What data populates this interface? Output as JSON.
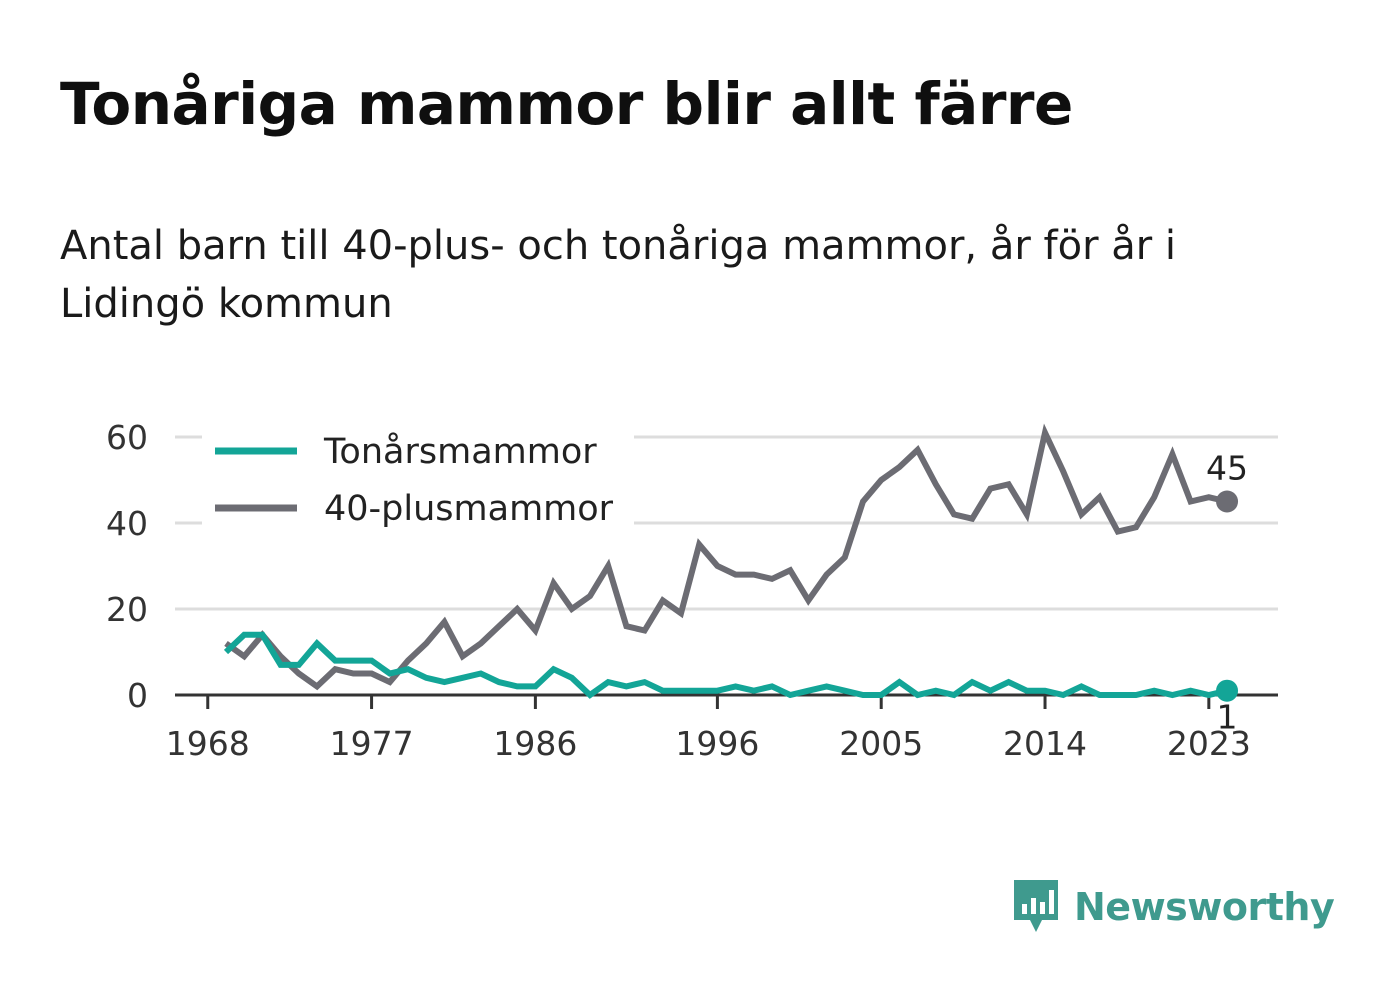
{
  "title": "Tonåriga mammor blir allt färre",
  "subtitle": "Antal barn till 40-plus- och tonåriga mammor, år för år i Lidingö kommun",
  "brand": {
    "name": "Newsworthy",
    "icon": "newsworthy-logo-icon"
  },
  "colors": {
    "teen": "#13a597",
    "forty": "#6c6c73",
    "grid": "#dddddd",
    "axis": "#333333"
  },
  "chart_data": {
    "type": "line",
    "x_ticks": [
      "1968",
      "1977",
      "1986",
      "1996",
      "2005",
      "2014",
      "2023"
    ],
    "y_ticks": [
      "0",
      "20",
      "40",
      "60"
    ],
    "ylim": [
      0,
      60
    ],
    "grid": true,
    "legend": "top-left",
    "x": [
      1969,
      1970,
      1971,
      1972,
      1973,
      1974,
      1975,
      1976,
      1977,
      1978,
      1979,
      1980,
      1981,
      1982,
      1983,
      1984,
      1985,
      1986,
      1987,
      1988,
      1989,
      1990,
      1991,
      1992,
      1993,
      1994,
      1995,
      1996,
      1997,
      1998,
      1999,
      2000,
      2001,
      2002,
      2003,
      2004,
      2005,
      2006,
      2007,
      2008,
      2009,
      2010,
      2011,
      2012,
      2013,
      2014,
      2015,
      2016,
      2017,
      2018,
      2019,
      2020,
      2021,
      2022,
      2023,
      2024
    ],
    "series": [
      {
        "name": "Tonårsmammor",
        "values": [
          10,
          14,
          14,
          7,
          7,
          12,
          8,
          8,
          8,
          5,
          6,
          4,
          3,
          4,
          5,
          3,
          2,
          2,
          6,
          4,
          0,
          3,
          2,
          3,
          1,
          1,
          1,
          1,
          2,
          1,
          2,
          0,
          1,
          2,
          1,
          0,
          0,
          3,
          0,
          1,
          0,
          3,
          1,
          3,
          1,
          1,
          0,
          2,
          0,
          0,
          0,
          1,
          0,
          1,
          0,
          1
        ],
        "end_label": "1"
      },
      {
        "name": "40-plusmammor",
        "values": [
          12,
          9,
          14,
          9,
          5,
          2,
          6,
          5,
          5,
          3,
          8,
          12,
          17,
          9,
          12,
          16,
          20,
          15,
          26,
          20,
          23,
          30,
          16,
          15,
          22,
          19,
          35,
          30,
          28,
          28,
          27,
          29,
          22,
          28,
          32,
          45,
          50,
          53,
          57,
          49,
          42,
          41,
          48,
          49,
          42,
          61,
          52,
          42,
          46,
          38,
          39,
          46,
          56,
          45,
          46,
          45
        ],
        "end_label": "45"
      }
    ]
  }
}
